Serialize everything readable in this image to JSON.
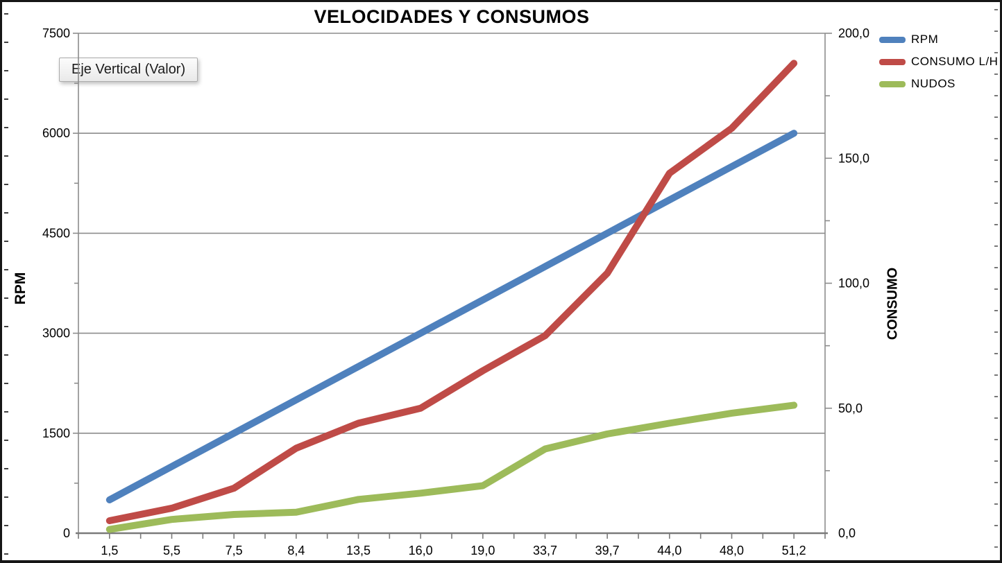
{
  "tooltip": {
    "text": "Eje Vertical (Valor)"
  },
  "chart_data": {
    "type": "line",
    "title": "VELOCIDADES Y CONSUMOS",
    "categories": [
      "1,5",
      "5,5",
      "7,5",
      "8,4",
      "13,5",
      "16,0",
      "19,0",
      "33,7",
      "39,7",
      "44,0",
      "48,0",
      "51,2"
    ],
    "left_axis": {
      "title": "RPM",
      "min": 0,
      "max": 7500,
      "tick_step": 1500,
      "minor_tick_step": 750,
      "tick_labels": [
        "0",
        "1500",
        "3000",
        "4500",
        "6000",
        "7500"
      ]
    },
    "right_axis": {
      "title": "CONSUMO",
      "min": 0,
      "max": 200,
      "tick_step": 50,
      "minor_tick_step": 25,
      "tick_labels": [
        "0,0",
        "50,0",
        "100,0",
        "150,0",
        "200,0"
      ]
    },
    "series": [
      {
        "name": "RPM",
        "axis": "left",
        "color": "#4F81BD",
        "values": [
          500,
          1000,
          1500,
          2000,
          2500,
          3000,
          3500,
          4000,
          4500,
          5000,
          5500,
          6000
        ]
      },
      {
        "name": "CONSUMO L/H",
        "axis": "right",
        "color": "#BF4B47",
        "values": [
          5,
          10,
          18,
          34,
          44,
          50,
          65,
          79,
          104,
          144,
          162,
          188
        ]
      },
      {
        "name": "NUDOS",
        "axis": "right",
        "color": "#9DBB5A",
        "values": [
          1.5,
          5.5,
          7.5,
          8.4,
          13.5,
          16.0,
          19.0,
          33.7,
          39.7,
          44.0,
          48.0,
          51.2
        ]
      }
    ],
    "legend": {
      "position": "top-right",
      "entries": [
        "RPM",
        "CONSUMO L/H",
        "NUDOS"
      ]
    },
    "grid": true,
    "grid_color": "#8c8c8c",
    "axis_line_color": "#7a7a7a",
    "background": "#ffffff"
  }
}
